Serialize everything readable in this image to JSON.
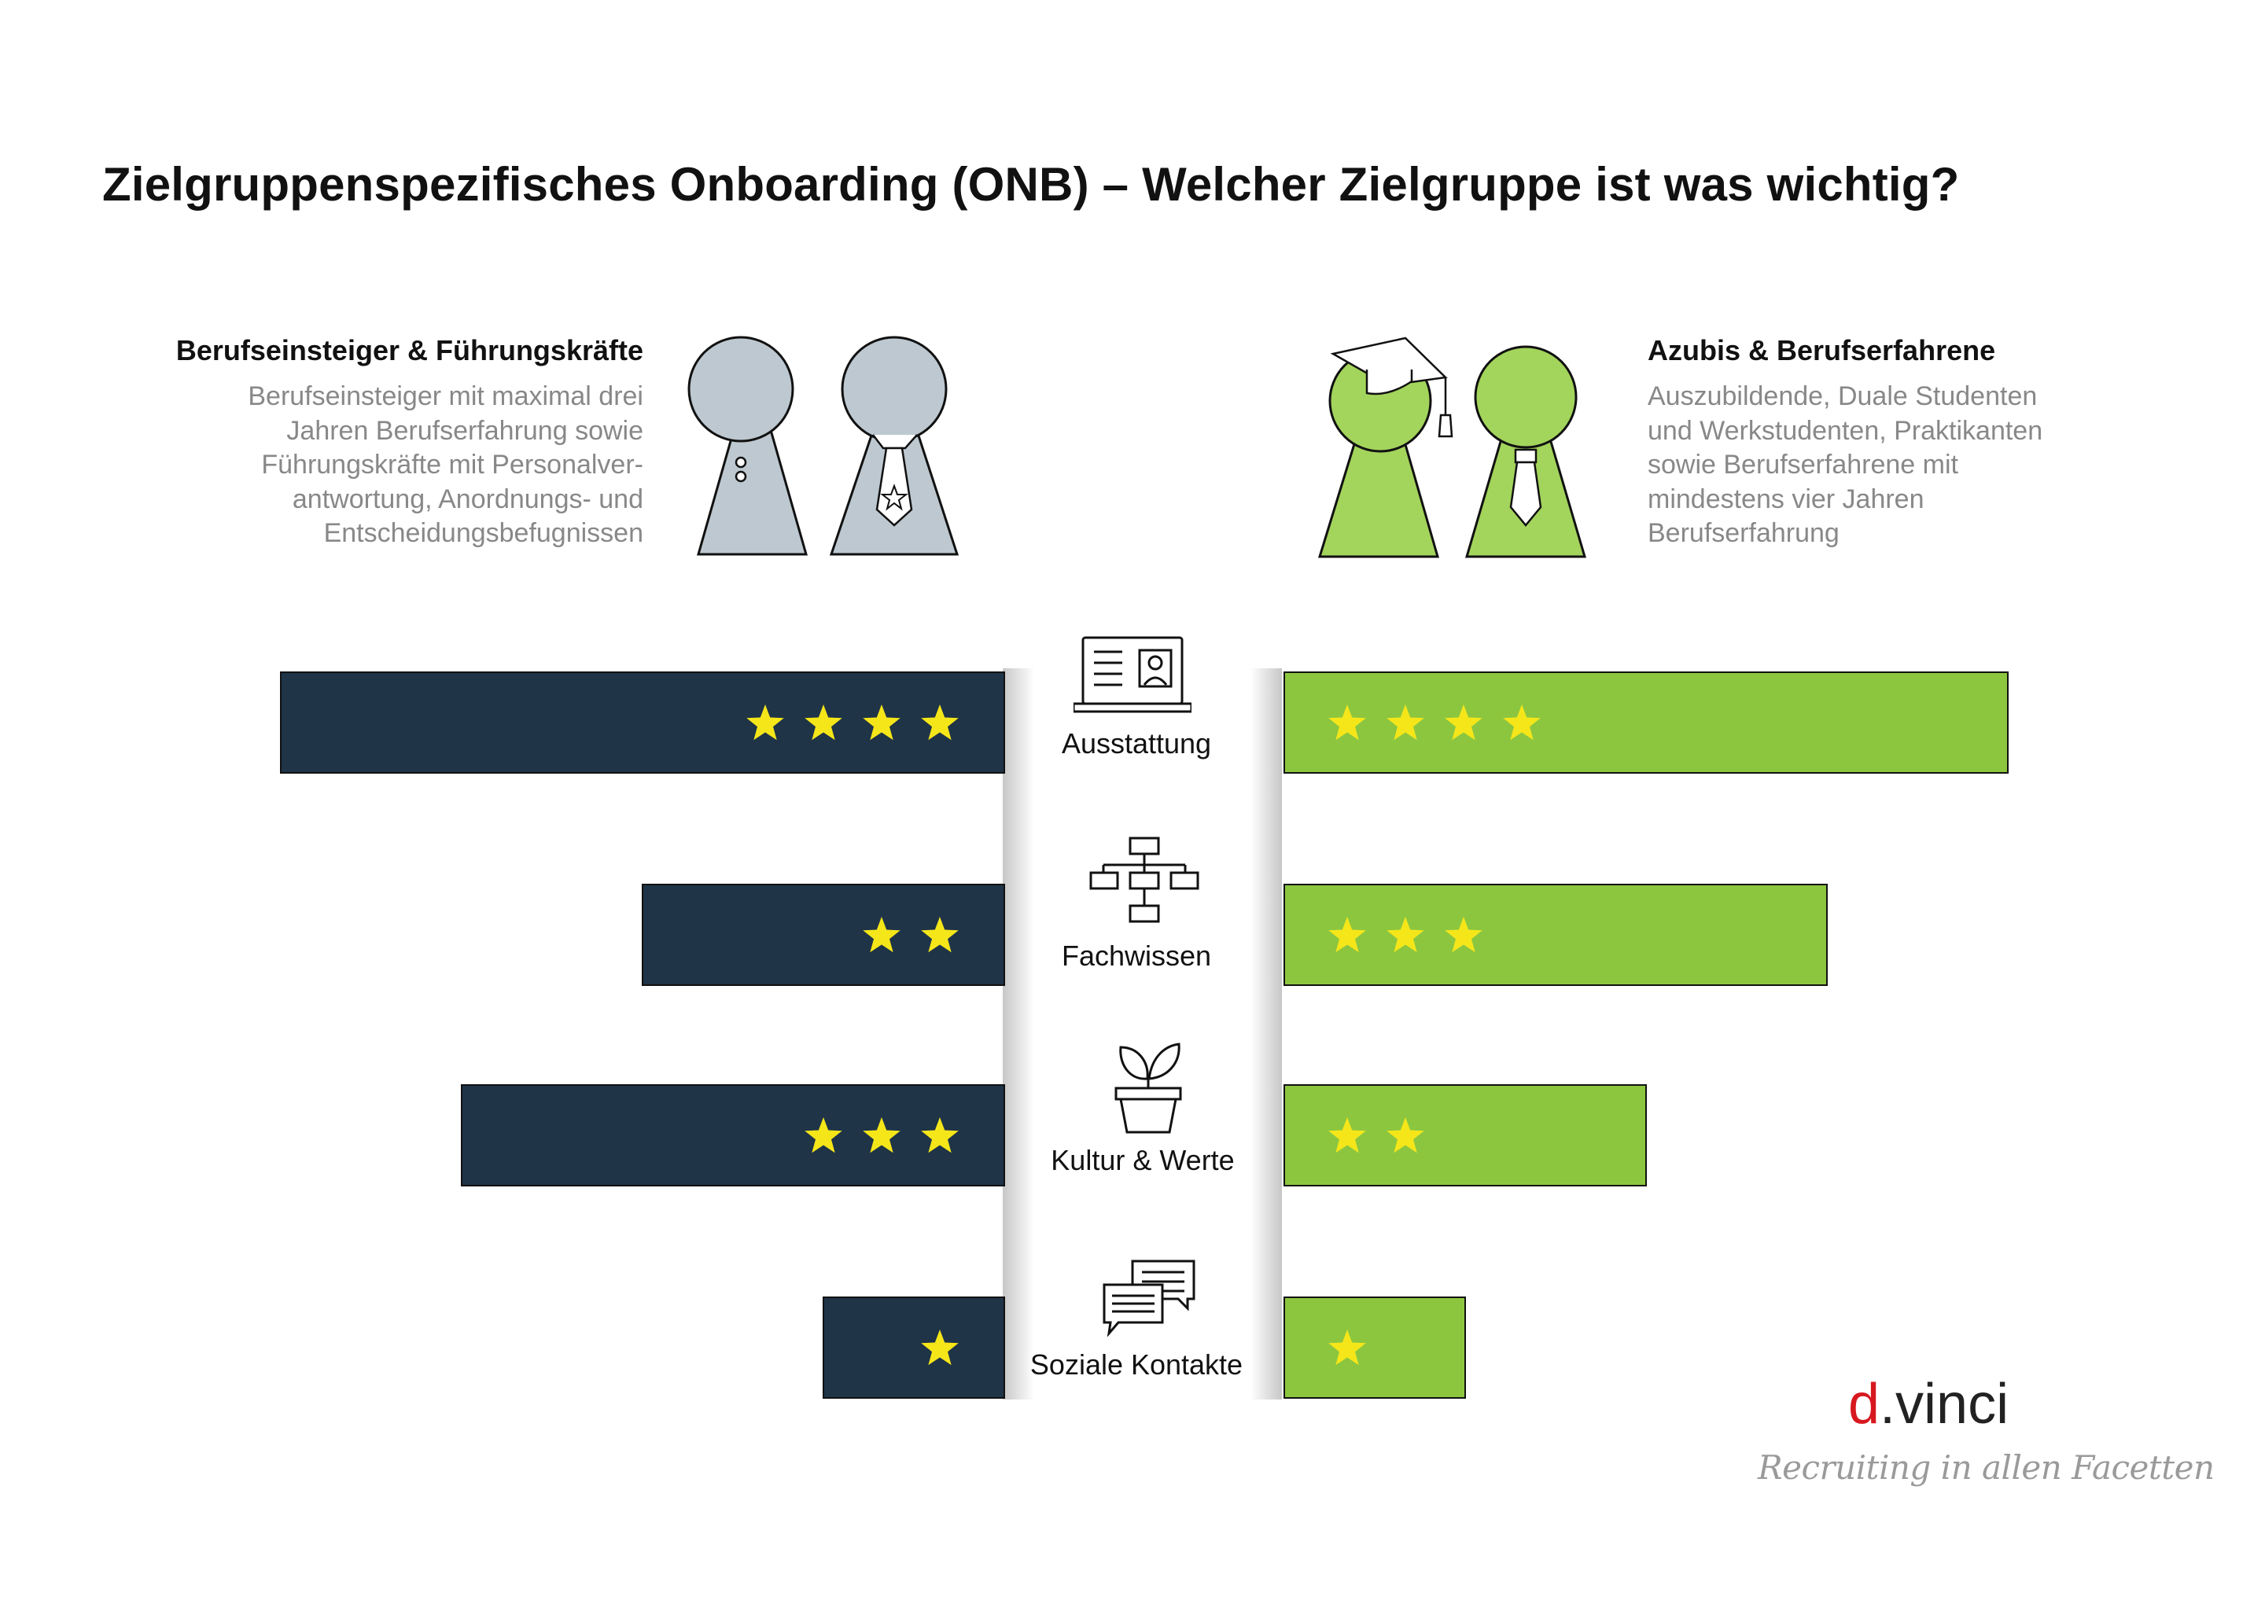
{
  "title": "Zielgruppenspezifisches Onboarding (ONB) – Welcher Zielgruppe ist was wichtig?",
  "left_group": {
    "heading": "Berufseinsteiger & Führungskräfte",
    "description_lines": [
      "Berufseinsteiger mit maximal drei",
      "Jahren Berufserfahrung sowie",
      "Führungskräfte mit Personalver-",
      "antwortung, Anordnungs- und",
      "Entscheidungsbefugnissen"
    ]
  },
  "right_group": {
    "heading": "Azubis & Berufserfahrene",
    "description_lines": [
      "Auszubildende, Duale Studenten",
      "und Werkstudenten, Praktikanten",
      "sowie Berufserfahrene mit",
      "mindestens vier Jahren",
      "Berufserfahrung"
    ]
  },
  "chart_data": {
    "type": "bar",
    "categories": [
      "Ausstattung",
      "Fachwissen",
      "Kultur & Werte",
      "Soziale Kontakte"
    ],
    "category_icons": [
      "laptop-icon",
      "org-chart-icon",
      "plant-icon",
      "chat-bubbles-icon"
    ],
    "series": [
      {
        "values": [
          4,
          2,
          3,
          1
        ],
        "color": "#1f3447"
      },
      {
        "values": [
          4,
          3,
          2,
          1
        ],
        "color": "#8cc63f"
      }
    ],
    "ylim": [
      0,
      4
    ],
    "star_color": "#f5e61a"
  },
  "logo": {
    "prefix": "d",
    "suffix": ".vinci",
    "tagline": "Recruiting in allen Facetten"
  }
}
